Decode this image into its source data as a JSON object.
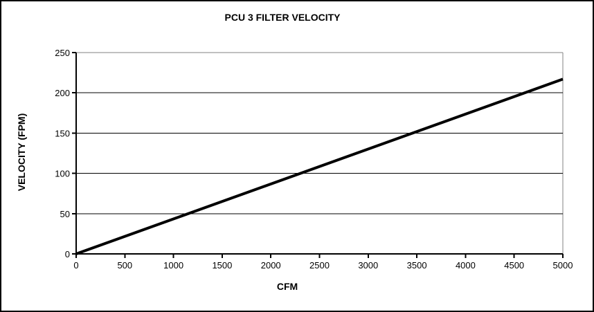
{
  "chart_data": {
    "type": "line",
    "title": "PCU 3 FILTER VELOCITY",
    "xlabel": "CFM",
    "ylabel": "VELOCITY (FPM)",
    "xlim": [
      0,
      5000
    ],
    "ylim": [
      0,
      250
    ],
    "x_ticks": [
      0,
      500,
      1000,
      1500,
      2000,
      2500,
      3000,
      3500,
      4000,
      4500,
      5000
    ],
    "y_ticks": [
      0,
      50,
      100,
      150,
      200,
      250
    ],
    "grid": "horizontal gridlines at every y tick",
    "legend_position": "none",
    "series": [
      {
        "name": "PCU 3 filter velocity",
        "x": [
          0,
          5000
        ],
        "y": [
          0,
          217
        ],
        "color": "#000000",
        "line_width": 4
      }
    ],
    "colors": {
      "background": "#ffffff",
      "gridline": "#000000",
      "plot_border": "#808080",
      "axis": "#000000",
      "text": "#000000",
      "frame_border": "#000000"
    }
  }
}
